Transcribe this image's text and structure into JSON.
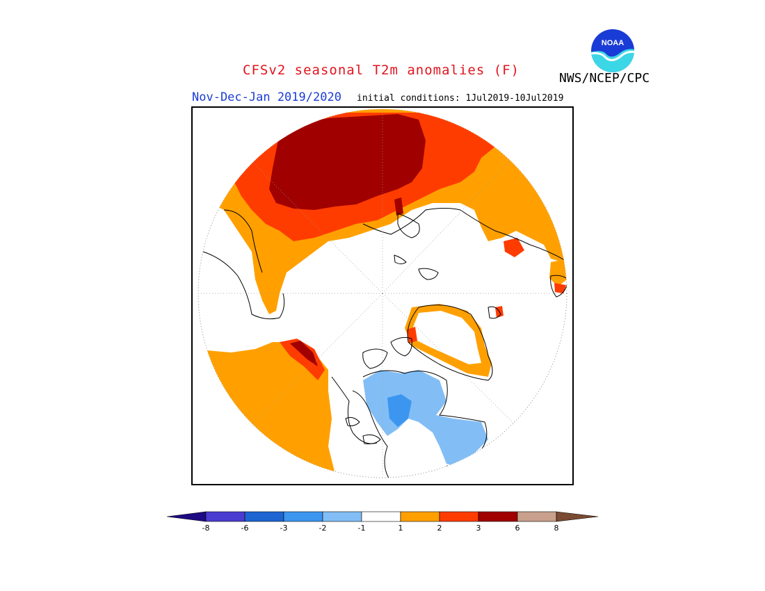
{
  "title": "CFSv2 seasonal T2m anomalies (F)",
  "organization": "NWS/NCEP/CPC",
  "logo_text": "NOAA",
  "season": "Nov-Dec-Jan 2019/2020",
  "initial_conditions": "initial conditions: 1Jul2019-10Jul2019",
  "colors": {
    "lt_minus8": "#1e0a82",
    "m8_m6": "#4a3cd0",
    "m6_m3": "#1e64d2",
    "m3_m2": "#3c96f0",
    "m2_m1": "#82bef5",
    "m1_1": "#ffffff",
    "p1_2": "#ffa000",
    "p2_3": "#ff3c00",
    "p3_6": "#a00000",
    "p6_8": "#c8a08c",
    "gt_8": "#7a4a32"
  },
  "legend": {
    "bins": [
      "m8_m6",
      "m6_m3",
      "m3_m2",
      "m2_m1",
      "m1_1",
      "p1_2",
      "p2_3",
      "p3_6",
      "p6_8"
    ],
    "tick_labels": [
      "-8",
      "-6",
      "-3",
      "-2",
      "-1",
      "1",
      "2",
      "3",
      "6",
      "8"
    ]
  }
}
